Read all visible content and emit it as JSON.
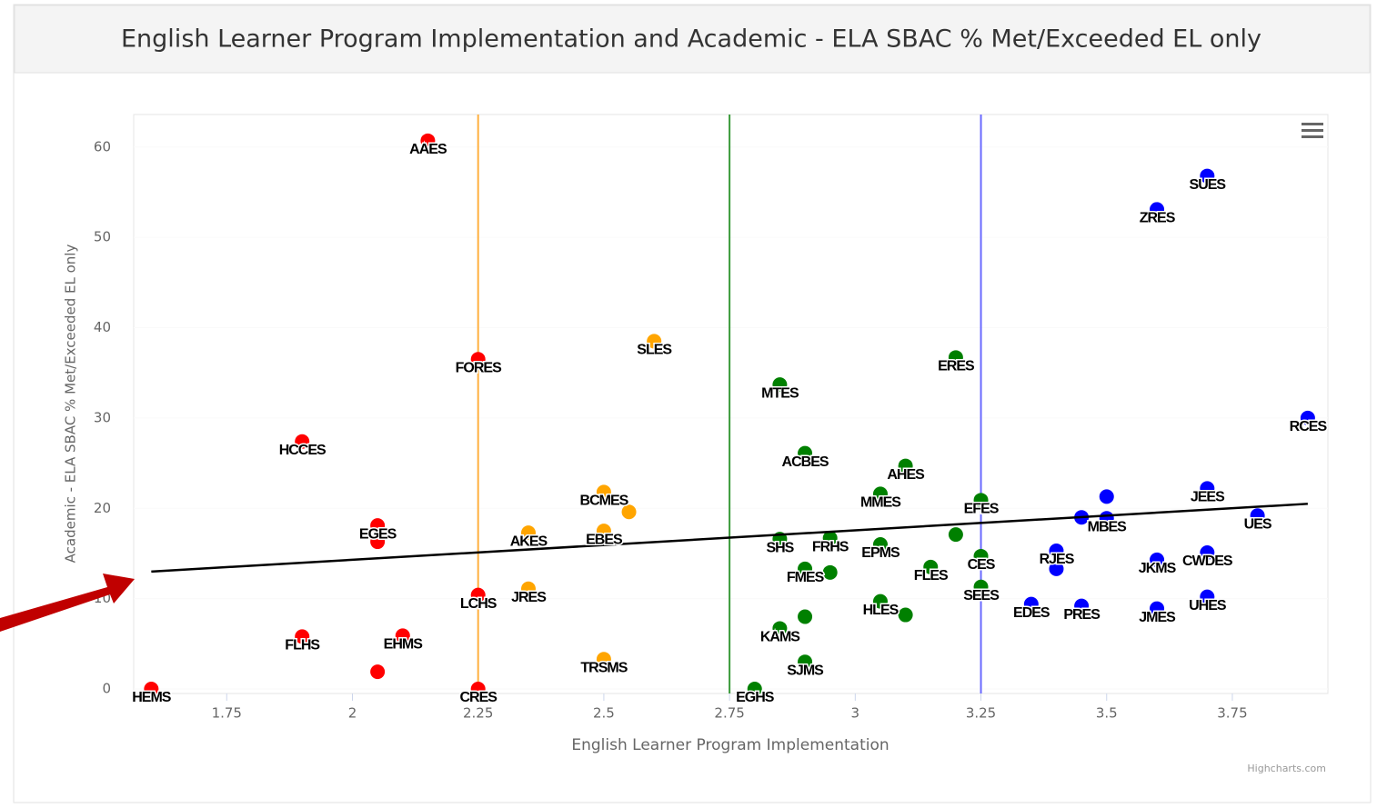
{
  "chart_data": {
    "type": "scatter",
    "title": "English Learner Program Implementation and Academic - ELA SBAC % Met/Exceeded EL only",
    "x_label": "English Learner Program Implementation",
    "y_label": "Academic - ELA SBAC % Met/Exceeded EL only",
    "credit": "Highcharts.com",
    "xlim": [
      1.565,
      3.94
    ],
    "xticks": [
      1.75,
      2,
      2.25,
      2.5,
      2.75,
      3,
      3.25,
      3.5,
      3.75
    ],
    "ylim": [
      -0.5,
      63.6
    ],
    "yticks": [
      0,
      10,
      20,
      30,
      40,
      50,
      60
    ],
    "plot_lines": [
      {
        "value": 2.25,
        "color": "#ffb040"
      },
      {
        "value": 2.75,
        "color": "#3a9a3a"
      },
      {
        "value": 3.25,
        "color": "#6a6aff"
      }
    ],
    "trendline": {
      "x": [
        1.6,
        3.9
      ],
      "y": [
        13,
        20.5
      ],
      "color": "#000000"
    },
    "series": [
      {
        "color": "#ff0000",
        "x": [
          1.6,
          1.9,
          2.1,
          2.05,
          2.05,
          2.05,
          1.9,
          2.25,
          2.15,
          2.25,
          2.25
        ],
        "values": [
          0,
          5.8,
          5.9,
          1.9,
          18.1,
          16.3,
          27.4,
          36.5,
          60.7,
          10.4,
          0
        ],
        "labels": [
          "HEMS",
          "FLHS",
          "EHMS",
          null,
          "EGES",
          null,
          "HCCES",
          "FORES",
          "AAES",
          "LCHS",
          "CRES"
        ]
      },
      {
        "color": "#ffa500",
        "x": [
          2.6,
          2.5,
          2.55,
          2.35,
          2.5,
          2.35,
          2.5
        ],
        "values": [
          38.5,
          21.8,
          19.6,
          17.3,
          17.5,
          11.1,
          3.3
        ],
        "labels": [
          "SLES",
          "BCMES",
          null,
          "AKES",
          "EBES",
          "JRES",
          "TRSMS"
        ]
      },
      {
        "color": "#008000",
        "x": [
          2.85,
          3.2,
          2.9,
          3.1,
          3.05,
          3.25,
          3.2,
          2.85,
          2.95,
          3.05,
          3.25,
          3.15,
          2.9,
          2.95,
          3.25,
          3.05,
          3.1,
          2.9,
          2.85,
          2.9,
          2.8
        ],
        "values": [
          33.7,
          36.7,
          26.1,
          24.7,
          21.6,
          20.9,
          17.1,
          16.6,
          16.7,
          16.0,
          14.7,
          13.5,
          13.3,
          12.9,
          11.3,
          9.7,
          8.2,
          8.0,
          6.7,
          3.0,
          0
        ],
        "labels": [
          "MTES",
          "ERES",
          "ACBES",
          "AHES",
          "MMES",
          "EFES",
          null,
          "SHS",
          "FRHS",
          "EPMS",
          "CES",
          "FLES",
          "FMES",
          null,
          "SEES",
          "HLES",
          null,
          null,
          "KAMS",
          "SJMS",
          "EGHS"
        ]
      },
      {
        "color": "#0000ff",
        "x": [
          3.7,
          3.6,
          3.9,
          3.7,
          3.8,
          3.5,
          3.5,
          3.45,
          3.4,
          3.4,
          3.6,
          3.7,
          3.7,
          3.35,
          3.45,
          3.6
        ],
        "values": [
          56.8,
          53.1,
          30.0,
          22.2,
          19.2,
          21.3,
          18.9,
          19.0,
          15.3,
          13.3,
          14.3,
          15.1,
          10.2,
          9.4,
          9.2,
          8.9
        ],
        "labels": [
          "SUES",
          "ZRES",
          "RCES",
          "JEES",
          "UES",
          null,
          "MBES",
          null,
          "RJES",
          null,
          "JKMS",
          "CWDES",
          "UHES",
          "EDES",
          "PRES",
          "JMES"
        ]
      }
    ]
  }
}
